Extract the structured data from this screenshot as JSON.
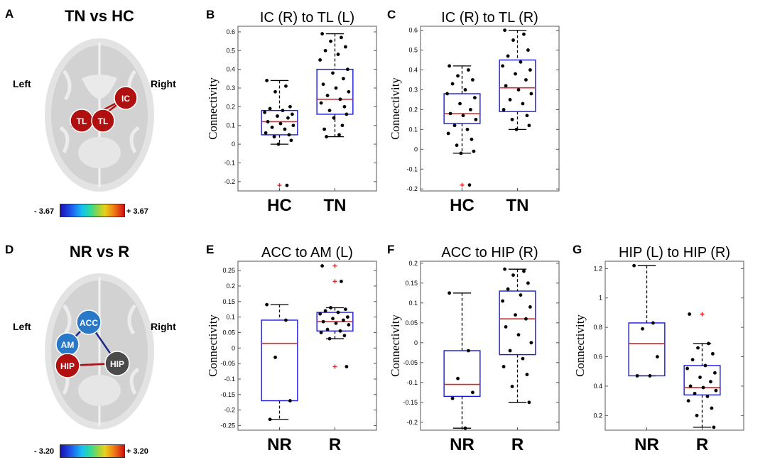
{
  "figure": {
    "top": {
      "letter": "A",
      "title": "TN vs HC",
      "left_label": "Left",
      "right_label": "Right",
      "nodes": [
        "IC",
        "TL",
        "TL"
      ],
      "colorbar_min": "- 3.67",
      "colorbar_max": "+ 3.67"
    },
    "bottom": {
      "letter": "D",
      "title": "NR vs R",
      "left_label": "Left",
      "right_label": "Right",
      "nodes": [
        "ACC",
        "AM",
        "HIP",
        "HIP"
      ],
      "colorbar_min": "- 3.20",
      "colorbar_max": "+ 3.20"
    }
  },
  "colors": {
    "box": "#1a1ad6",
    "median": "#e0262b",
    "point": "#000000",
    "outlier": "#e0262b",
    "node_red": "#b01010",
    "node_blue": "#2a78c8",
    "node_gray": "#4a4a4a",
    "edge_red": "#b01010",
    "edge_blue": "#1a2a8a"
  },
  "chart_data": [
    {
      "letter": "B",
      "type": "box",
      "title": "IC (R) to TL (L)",
      "ylabel": "Connectivity",
      "ylim": [
        -0.25,
        0.63
      ],
      "yticks": [
        -0.2,
        -0.1,
        0,
        0.1,
        0.2,
        0.3,
        0.4,
        0.5,
        0.6
      ],
      "ytick_labels": [
        "-0.2",
        "-0.1",
        "0",
        "0.1",
        "0.2",
        "0.3",
        "0.4",
        "0.5",
        "0.6"
      ],
      "categories": [
        "HC",
        "TN"
      ],
      "series": [
        {
          "name": "HC",
          "q1": 0.05,
          "median": 0.12,
          "q3": 0.18,
          "whisker_low": 0.0,
          "whisker_high": 0.34,
          "points": [
            0.34,
            0.31,
            0.28,
            0.2,
            0.19,
            0.18,
            0.17,
            0.16,
            0.15,
            0.14,
            0.12,
            0.11,
            0.1,
            0.09,
            0.08,
            0.06,
            0.05,
            0.04,
            0.02,
            0.0,
            -0.22
          ],
          "outliers": [
            -0.22
          ]
        },
        {
          "name": "TN",
          "q1": 0.16,
          "median": 0.24,
          "q3": 0.4,
          "whisker_low": 0.04,
          "whisker_high": 0.59,
          "points": [
            0.59,
            0.57,
            0.55,
            0.52,
            0.5,
            0.48,
            0.45,
            0.4,
            0.38,
            0.35,
            0.32,
            0.3,
            0.28,
            0.26,
            0.24,
            0.22,
            0.2,
            0.18,
            0.16,
            0.14,
            0.1,
            0.08,
            0.05,
            0.04
          ],
          "outliers": []
        }
      ]
    },
    {
      "letter": "C",
      "type": "box",
      "title": "IC (R) to TL (R)",
      "ylabel": "Connectivity",
      "ylim": [
        -0.21,
        0.62
      ],
      "yticks": [
        -0.2,
        -0.1,
        0,
        0.1,
        0.2,
        0.3,
        0.4,
        0.5,
        0.6
      ],
      "ytick_labels": [
        "-0.2",
        "-0.1",
        "0",
        "0.1",
        "0.2",
        "0.3",
        "0.4",
        "0.5",
        "0.6"
      ],
      "categories": [
        "HC",
        "TN"
      ],
      "series": [
        {
          "name": "HC",
          "q1": 0.13,
          "median": 0.18,
          "q3": 0.28,
          "whisker_low": -0.02,
          "whisker_high": 0.42,
          "points": [
            0.42,
            0.4,
            0.37,
            0.35,
            0.33,
            0.3,
            0.28,
            0.26,
            0.23,
            0.2,
            0.18,
            0.17,
            0.15,
            0.12,
            0.1,
            0.08,
            0.05,
            0.02,
            -0.01,
            -0.02,
            -0.18
          ],
          "outliers": [
            -0.18
          ]
        },
        {
          "name": "TN",
          "q1": 0.19,
          "median": 0.31,
          "q3": 0.45,
          "whisker_low": 0.1,
          "whisker_high": 0.6,
          "points": [
            0.6,
            0.58,
            0.55,
            0.5,
            0.47,
            0.44,
            0.42,
            0.4,
            0.38,
            0.35,
            0.32,
            0.3,
            0.28,
            0.25,
            0.23,
            0.2,
            0.17,
            0.15,
            0.12,
            0.1
          ],
          "outliers": []
        }
      ]
    },
    {
      "letter": "E",
      "type": "box",
      "title": "ACC to AM (L)",
      "ylabel": "Connectivity",
      "ylim": [
        -0.265,
        0.28
      ],
      "yticks": [
        -0.25,
        -0.2,
        -0.15,
        -0.1,
        -0.05,
        0,
        0.05,
        0.1,
        0.15,
        0.2,
        0.25
      ],
      "ytick_labels": [
        "-0.25",
        "-0.2",
        "-0.15",
        "-0.1",
        "-0.05",
        "0",
        "0.05",
        "0.1",
        "0.15",
        "0.2",
        "0.25"
      ],
      "categories": [
        "NR",
        "R"
      ],
      "series": [
        {
          "name": "NR",
          "q1": -0.17,
          "median": 0.015,
          "q3": 0.09,
          "whisker_low": -0.23,
          "whisker_high": 0.14,
          "points": [
            0.14,
            0.09,
            -0.03,
            -0.17,
            -0.23
          ],
          "outliers": []
        },
        {
          "name": "R",
          "q1": 0.055,
          "median": 0.085,
          "q3": 0.115,
          "whisker_low": 0.03,
          "whisker_high": 0.13,
          "points": [
            0.265,
            0.215,
            0.13,
            0.125,
            0.12,
            0.115,
            0.11,
            0.1,
            0.095,
            0.09,
            0.085,
            0.08,
            0.075,
            0.06,
            0.055,
            0.05,
            0.04,
            0.03,
            -0.06
          ],
          "outliers": [
            0.265,
            0.215,
            -0.06
          ]
        }
      ]
    },
    {
      "letter": "F",
      "type": "box",
      "title": "ACC to HIP (R)",
      "ylabel": "Connectivity",
      "ylim": [
        -0.22,
        0.205
      ],
      "yticks": [
        -0.2,
        -0.15,
        -0.1,
        -0.05,
        0,
        0.05,
        0.1,
        0.15,
        0.2
      ],
      "ytick_labels": [
        "-0.2",
        "-0.15",
        "-0.1",
        "-0.05",
        "0",
        "0.05",
        "0.1",
        "0.15",
        "0.2"
      ],
      "categories": [
        "NR",
        "R"
      ],
      "series": [
        {
          "name": "NR",
          "q1": -0.135,
          "median": -0.105,
          "q3": -0.02,
          "whisker_low": -0.215,
          "whisker_high": 0.125,
          "points": [
            0.125,
            -0.02,
            -0.09,
            -0.125,
            -0.14,
            -0.215
          ],
          "outliers": []
        },
        {
          "name": "R",
          "q1": -0.03,
          "median": 0.06,
          "q3": 0.13,
          "whisker_low": -0.15,
          "whisker_high": 0.185,
          "points": [
            0.185,
            0.18,
            0.17,
            0.15,
            0.135,
            0.12,
            0.105,
            0.09,
            0.07,
            0.06,
            0.04,
            0.02,
            0.0,
            -0.02,
            -0.04,
            -0.06,
            -0.08,
            -0.11,
            -0.15
          ],
          "outliers": []
        }
      ]
    },
    {
      "letter": "G",
      "type": "box",
      "title": "HIP (L) to HIP (R)",
      "ylabel": "Connectivity",
      "ylim": [
        0.1,
        1.25
      ],
      "yticks": [
        0.2,
        0.4,
        0.6,
        0.8,
        1.0,
        1.2
      ],
      "ytick_labels": [
        "0.2",
        "0.4",
        "0.6",
        "0.8",
        "1",
        "1.2"
      ],
      "categories": [
        "NR",
        "R"
      ],
      "series": [
        {
          "name": "NR",
          "q1": 0.47,
          "median": 0.69,
          "q3": 0.83,
          "whisker_low": 0.47,
          "whisker_high": 1.22,
          "points": [
            1.22,
            0.83,
            0.79,
            0.6,
            0.47,
            0.47
          ],
          "outliers": []
        },
        {
          "name": "R",
          "q1": 0.34,
          "median": 0.39,
          "q3": 0.54,
          "whisker_low": 0.12,
          "whisker_high": 0.69,
          "points": [
            0.89,
            0.69,
            0.66,
            0.62,
            0.58,
            0.54,
            0.52,
            0.49,
            0.46,
            0.43,
            0.4,
            0.39,
            0.37,
            0.35,
            0.33,
            0.3,
            0.25,
            0.2,
            0.12
          ],
          "outliers": [
            0.89
          ]
        }
      ]
    }
  ]
}
